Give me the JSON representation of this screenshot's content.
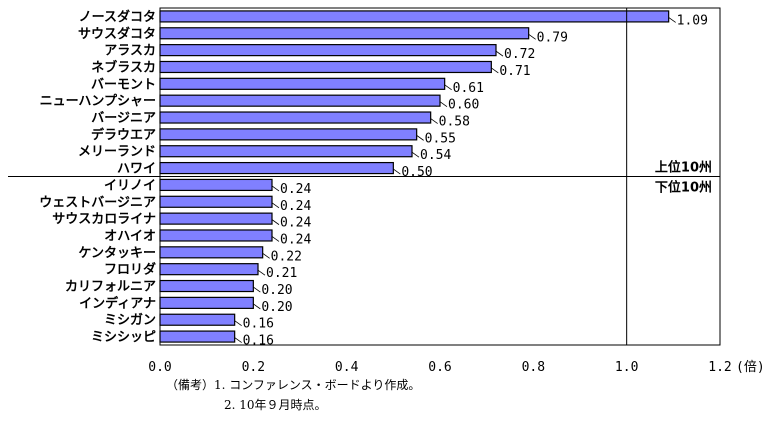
{
  "chart_data": {
    "type": "bar",
    "orientation": "horizontal",
    "categories": [
      "ノースダコタ",
      "サウスダコタ",
      "アラスカ",
      "ネブラスカ",
      "バーモント",
      "ニューハンプシャー",
      "バージニア",
      "デラウエア",
      "メリーランド",
      "ハワイ",
      "イリノイ",
      "ウェストバージニア",
      "サウスカロライナ",
      "オハイオ",
      "ケンタッキー",
      "フロリダ",
      "カリフォルニア",
      "インディアナ",
      "ミシガン",
      "ミシシッピ"
    ],
    "values": [
      1.09,
      0.79,
      0.72,
      0.71,
      0.61,
      0.6,
      0.58,
      0.55,
      0.54,
      0.5,
      0.24,
      0.24,
      0.24,
      0.24,
      0.22,
      0.21,
      0.2,
      0.2,
      0.16,
      0.16
    ],
    "value_labels": [
      "1.09",
      "0.79",
      "0.72",
      "0.71",
      "0.61",
      "0.60",
      "0.58",
      "0.55",
      "0.54",
      "0.50",
      "0.24",
      "0.24",
      "0.24",
      "0.24",
      "0.22",
      "0.21",
      "0.20",
      "0.20",
      "0.16",
      "0.16"
    ],
    "xlim": [
      0,
      1.2
    ],
    "xticks": [
      "0.0",
      "0.2",
      "0.4",
      "0.6",
      "0.8",
      "1.0",
      "1.2"
    ],
    "x_unit": "(倍)",
    "reference_line": 1.0,
    "group_labels": [
      "上位10州",
      "下位10州"
    ],
    "bar_color": "#8080ff",
    "grid": false
  },
  "notes": {
    "line1": "（備考）1.  コンファレンス・ボードより作成。",
    "line2": "2.  10年９月時点。"
  }
}
